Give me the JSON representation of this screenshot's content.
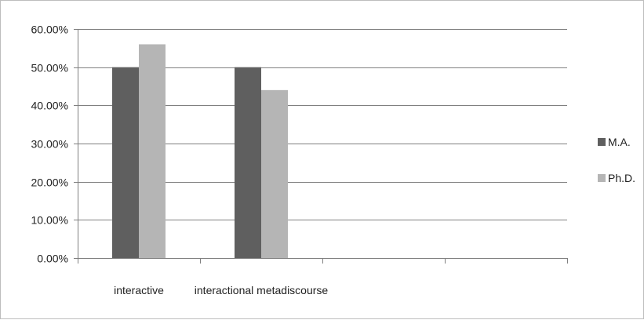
{
  "chart_data": {
    "type": "bar",
    "categories": [
      "interactive",
      "interactional metadiscourse",
      "",
      ""
    ],
    "series": [
      {
        "name": "M.A.",
        "values": [
          0.5,
          0.5,
          null,
          null
        ],
        "color": "#5f5f5f"
      },
      {
        "name": "Ph.D.",
        "values": [
          0.56,
          0.44,
          null,
          null
        ],
        "color": "#b5b5b5"
      }
    ],
    "y_ticks": [
      "0.00%",
      "10.00%",
      "20.00%",
      "30.00%",
      "40.00%",
      "50.00%",
      "60.00%"
    ],
    "ylim": [
      0,
      0.6
    ],
    "title": "",
    "xlabel": "",
    "ylabel": "",
    "grid": true,
    "legend_position": "right"
  },
  "colors": {
    "gridline": "#808080",
    "axis": "#808080"
  }
}
